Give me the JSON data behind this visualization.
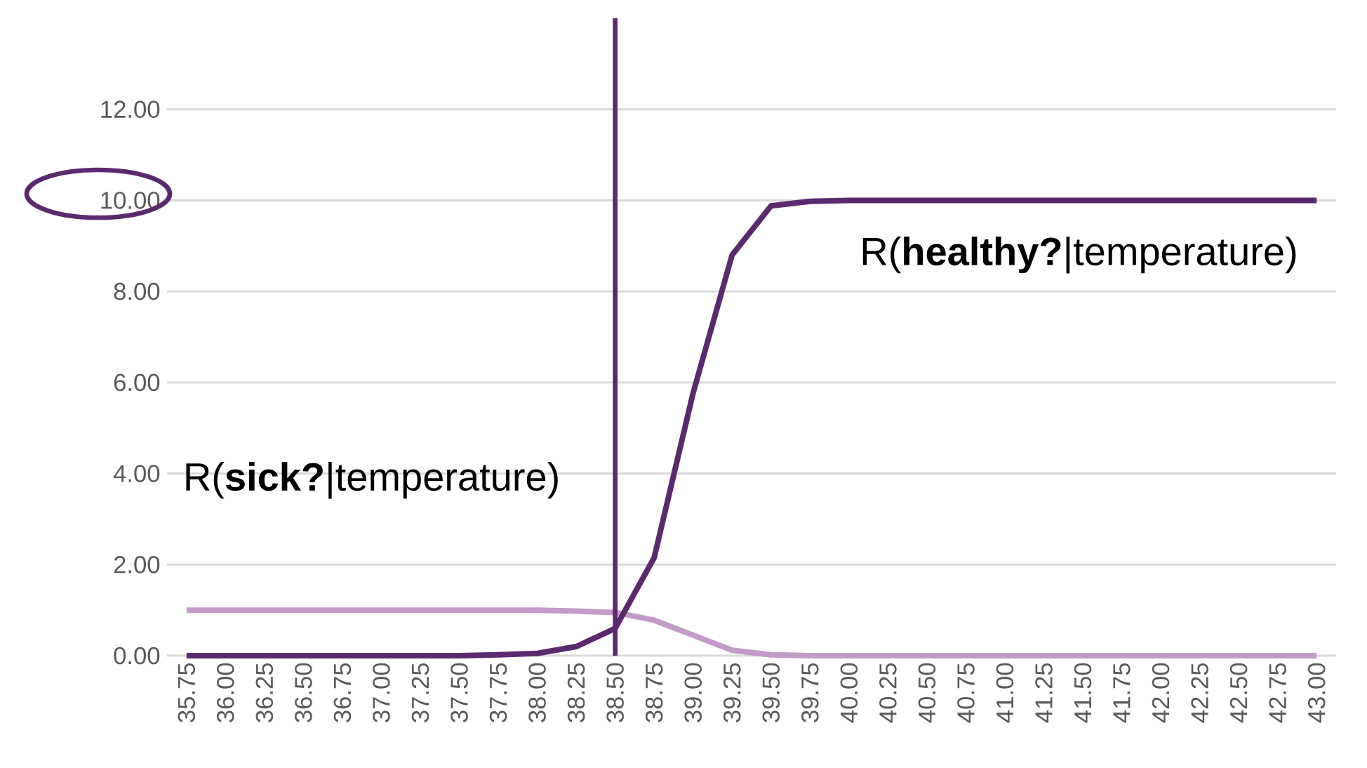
{
  "chart_data": {
    "type": "line",
    "categories": [
      "35.75",
      "36.00",
      "36.25",
      "36.50",
      "36.75",
      "37.00",
      "37.25",
      "37.50",
      "37.75",
      "38.00",
      "38.25",
      "38.50",
      "38.75",
      "39.00",
      "39.25",
      "39.50",
      "39.75",
      "40.00",
      "40.25",
      "40.50",
      "40.75",
      "41.00",
      "41.25",
      "41.50",
      "41.75",
      "42.00",
      "42.25",
      "42.50",
      "42.75",
      "43.00"
    ],
    "series": [
      {
        "color": "#c39bc8",
        "values": [
          1,
          1,
          1,
          1,
          1,
          1,
          1,
          1,
          1,
          1,
          0.98,
          0.95,
          0.78,
          0.45,
          0.12,
          0.02,
          0,
          0,
          0,
          0,
          0,
          0,
          0,
          0,
          0,
          0,
          0,
          0,
          0,
          0
        ]
      },
      {
        "color": "#5b2a6e",
        "values": [
          0,
          0,
          0,
          0,
          0,
          0,
          0,
          0,
          0.02,
          0.05,
          0.2,
          0.6,
          2.15,
          5.77,
          8.8,
          9.88,
          9.98,
          10,
          10,
          10,
          10,
          10,
          10,
          10,
          10,
          10,
          10,
          10,
          10,
          10
        ]
      }
    ],
    "ylim": [
      0,
      14
    ],
    "yticks": [
      {
        "value": 0,
        "label": "0.00"
      },
      {
        "value": 2,
        "label": "2.00"
      },
      {
        "value": 4,
        "label": "4.00"
      },
      {
        "value": 6,
        "label": "6.00"
      },
      {
        "value": 8,
        "label": "8.00"
      },
      {
        "value": 10,
        "label": "10.00"
      },
      {
        "value": 12,
        "label": "12.00"
      }
    ],
    "grid": "y",
    "ref_lines": [
      {
        "axis": "x",
        "value": "38.50",
        "color": "#5b2a6e"
      }
    ],
    "annotations": [
      "R(**sick?**|temperature)",
      "R(**healthy?**|temperature)"
    ]
  }
}
